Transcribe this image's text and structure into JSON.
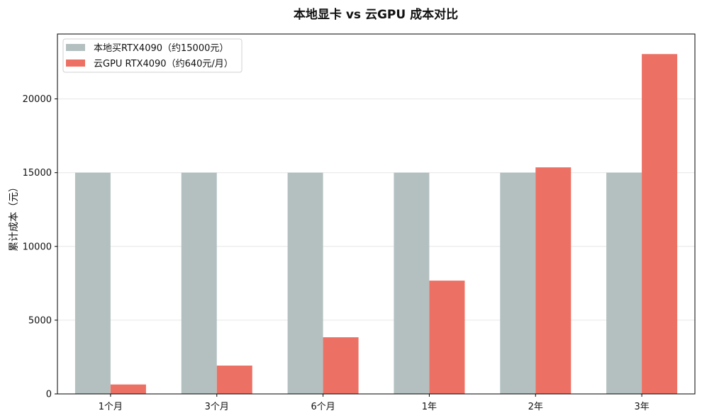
{
  "chart_data": {
    "type": "bar",
    "title": "本地显卡 vs 云GPU 成本对比",
    "xlabel": "",
    "ylabel": "累计成本（元）",
    "categories": [
      "1个月",
      "3个月",
      "6个月",
      "1年",
      "2年",
      "3年"
    ],
    "series": [
      {
        "name": "本地买RTX4090（约15000元）",
        "color": "#b4c0c0",
        "values": [
          15000,
          15000,
          15000,
          15000,
          15000,
          15000
        ]
      },
      {
        "name": "云GPU RTX4090（约640元/月）",
        "color": "#ec7063",
        "values": [
          640,
          1920,
          3840,
          7680,
          15360,
          23040
        ]
      }
    ],
    "ylim": [
      0,
      24400
    ],
    "yticks": [
      0,
      5000,
      10000,
      15000,
      20000
    ],
    "grid": true,
    "legend_position": "top-left"
  }
}
